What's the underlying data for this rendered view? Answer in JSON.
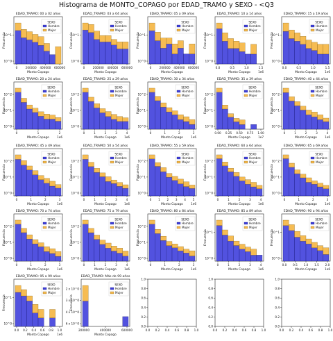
{
  "title": "Histograma de MONTO_COPAGO por EDAD_TRAMO y SEXO - <Q3",
  "colors": {
    "hombre": "#3f3fdc",
    "mujer": "#f6b84a"
  },
  "chart_data": [
    {
      "type": "bar",
      "title": "EDAD_TRAMO: 00 a 02 años",
      "legend_title": "SEXO",
      "xlabel": "Monto Copago",
      "ylabel": "Frecuencia",
      "yscale": "log",
      "yticks": [
        "10^0",
        "10^1"
      ],
      "xticks": [
        "0",
        "200000",
        "400000",
        "600000"
      ],
      "x_offset": "",
      "series": [
        {
          "name": "Hombre",
          "values": [
            6,
            3.5,
            3,
            2.5,
            2,
            1.3,
            1,
            0
          ]
        },
        {
          "name": "Mujer",
          "values": [
            4.5,
            3,
            2.5,
            2,
            1.8,
            1,
            0,
            1.8
          ]
        }
      ]
    },
    {
      "type": "bar",
      "title": "EDAD_TRAMO: 03 a 04 años",
      "legend_title": "SEXO",
      "xlabel": "Monto Copago",
      "ylabel": "Frecuencia",
      "yscale": "log",
      "yticks": [
        "10^0",
        "10^1"
      ],
      "xticks": [
        "0",
        "200000",
        "400000",
        "600000"
      ],
      "x_offset": "",
      "series": [
        {
          "name": "Hombre",
          "values": [
            6,
            5,
            3,
            2.5,
            2.5,
            2,
            1.5,
            1.5
          ]
        },
        {
          "name": "Mujer",
          "values": [
            4,
            4,
            2.5,
            1.5,
            1.5,
            1,
            1,
            1
          ]
        }
      ]
    },
    {
      "type": "bar",
      "title": "EDAD_TRAMO: 05 a 09 años",
      "legend_title": "SEXO",
      "xlabel": "Monto Copago",
      "ylabel": "Frecuencia",
      "yscale": "log",
      "yticks": [
        "10^0",
        "10^1"
      ],
      "xticks": [
        "0",
        "200000",
        "400000",
        "600000"
      ],
      "x_offset": "",
      "series": [
        {
          "name": "Hombre",
          "values": [
            5,
            2.5,
            1.5,
            2,
            1,
            1.5,
            1,
            1
          ]
        },
        {
          "name": "Mujer",
          "values": [
            3.5,
            2,
            1.5,
            1,
            1,
            1,
            0,
            1
          ]
        }
      ]
    },
    {
      "type": "bar",
      "title": "EDAD_TRAMO: 10 a 14 años",
      "legend_title": "SEXO",
      "xlabel": "Monto Copago",
      "ylabel": "Frecuencia",
      "yscale": "log",
      "yticks": [
        "10^0",
        "10^1"
      ],
      "xticks": [
        "0.0",
        "0.5",
        "1.0",
        "1.5"
      ],
      "x_offset": "1e6",
      "series": [
        {
          "name": "Hombre",
          "values": [
            6,
            2.5,
            1.5,
            1.5,
            1.2,
            1,
            1,
            0
          ]
        },
        {
          "name": "Mujer",
          "values": [
            3,
            2,
            1.5,
            1,
            1,
            0,
            1,
            0
          ]
        }
      ]
    },
    {
      "type": "bar",
      "title": "EDAD_TRAMO: 15 a 19 años",
      "legend_title": "SEXO",
      "xlabel": "Monto Copago",
      "ylabel": "Frecuencia",
      "yscale": "log",
      "yticks": [
        "10^0",
        "10^1"
      ],
      "xticks": [
        "0.0",
        "0.5",
        "1.0",
        "1.5"
      ],
      "x_offset": "1e6",
      "series": [
        {
          "name": "Hombre",
          "values": [
            5,
            3,
            2.5,
            2,
            1.5,
            1.3,
            1,
            1
          ]
        },
        {
          "name": "Mujer",
          "values": [
            4,
            2.5,
            2,
            1.5,
            1.2,
            1,
            1,
            1
          ]
        }
      ]
    },
    {
      "type": "bar",
      "title": "EDAD_TRAMO: 20 a 24 años",
      "legend_title": "SEXO",
      "xlabel": "Monto Copago",
      "ylabel": "Frecuencia",
      "yscale": "log",
      "yticks": [
        "10^0",
        "10^1",
        "10^2"
      ],
      "xticks": [
        "0",
        "1",
        "2"
      ],
      "x_offset": "1e6",
      "series": [
        {
          "name": "Hombre",
          "values": [
            80,
            20,
            8,
            5,
            3,
            2,
            2,
            1.5
          ]
        },
        {
          "name": "Mujer",
          "values": [
            60,
            15,
            6,
            4,
            2.5,
            2,
            1.5,
            1
          ]
        }
      ]
    },
    {
      "type": "bar",
      "title": "EDAD_TRAMO: 25 a 29 años",
      "legend_title": "SEXO",
      "xlabel": "Monto Copago",
      "ylabel": "Frecuencia",
      "yscale": "log",
      "yticks": [
        "10^0",
        "10^1",
        "10^2"
      ],
      "xticks": [
        "0",
        "1",
        "2",
        "3",
        "4"
      ],
      "x_offset": "1e6",
      "series": [
        {
          "name": "Hombre",
          "values": [
            90,
            25,
            10,
            5,
            3,
            2,
            1.5,
            1.5
          ]
        },
        {
          "name": "Mujer",
          "values": [
            70,
            20,
            8,
            4,
            3,
            2,
            1.5,
            1
          ]
        }
      ]
    },
    {
      "type": "bar",
      "title": "EDAD_TRAMO: 30 a 34 años",
      "legend_title": "SEXO",
      "xlabel": "Monto Copago",
      "ylabel": "Frecuencia",
      "yscale": "log",
      "yticks": [
        "10^0",
        "10^1",
        "10^2"
      ],
      "xticks": [
        "0",
        "1",
        "2",
        "3"
      ],
      "x_offset": "1e6",
      "series": [
        {
          "name": "Hombre",
          "values": [
            100,
            30,
            12,
            6,
            4,
            2,
            1.5,
            1
          ]
        },
        {
          "name": "Mujer",
          "values": [
            80,
            25,
            10,
            5,
            3,
            2,
            1.5,
            1
          ]
        }
      ]
    },
    {
      "type": "bar",
      "title": "EDAD_TRAMO: 35 a 39 años",
      "legend_title": "SEXO",
      "xlabel": "Monto Copago",
      "ylabel": "Frecuencia",
      "yscale": "log",
      "yticks": [
        "10^0",
        "10^1",
        "10^2"
      ],
      "xticks": [
        "0.00",
        "0.25",
        "0.50",
        "0.75",
        "1.00"
      ],
      "x_offset": "1e7",
      "series": [
        {
          "name": "Hombre",
          "values": [
            120,
            10,
            3,
            1.5,
            1,
            0,
            1,
            0
          ]
        },
        {
          "name": "Mujer",
          "values": [
            100,
            8,
            2,
            1,
            1,
            0,
            0,
            0
          ]
        }
      ]
    },
    {
      "type": "bar",
      "title": "EDAD_TRAMO: 40 a 44 años",
      "legend_title": "SEXO",
      "xlabel": "Monto Copago",
      "ylabel": "Frecuencia",
      "yscale": "log",
      "yticks": [
        "10^0",
        "10^1",
        "10^2"
      ],
      "xticks": [
        "0",
        "1",
        "2",
        "3",
        "4"
      ],
      "x_offset": "1e6",
      "series": [
        {
          "name": "Hombre",
          "values": [
            100,
            30,
            15,
            8,
            4,
            3,
            2,
            1.5
          ]
        },
        {
          "name": "Mujer",
          "values": [
            90,
            25,
            12,
            6,
            4,
            3,
            2,
            1
          ]
        }
      ]
    },
    {
      "type": "bar",
      "title": "EDAD_TRAMO: 45 a 49 años",
      "legend_title": "SEXO",
      "xlabel": "Monto Copago",
      "ylabel": "Frecuencia",
      "yscale": "log",
      "yticks": [
        "10^0",
        "10^1",
        "10^2"
      ],
      "xticks": [
        "0",
        "1",
        "2",
        "3"
      ],
      "x_offset": "1e6",
      "series": [
        {
          "name": "Hombre",
          "values": [
            90,
            40,
            20,
            10,
            5,
            3,
            2,
            1.5
          ]
        },
        {
          "name": "Mujer",
          "values": [
            80,
            35,
            15,
            8,
            4,
            3,
            2,
            1
          ]
        }
      ]
    },
    {
      "type": "bar",
      "title": "EDAD_TRAMO: 50 a 54 años",
      "legend_title": "SEXO",
      "xlabel": "Monto Copago",
      "ylabel": "Frecuencia",
      "yscale": "log",
      "yticks": [
        "10^0",
        "10^1",
        "10^2"
      ],
      "xticks": [
        "0",
        "1",
        "2",
        "3",
        "4"
      ],
      "x_offset": "1e6",
      "series": [
        {
          "name": "Hombre",
          "values": [
            100,
            35,
            15,
            8,
            4,
            3,
            2,
            1.5
          ]
        },
        {
          "name": "Mujer",
          "values": [
            90,
            30,
            12,
            6,
            4,
            2,
            1.5,
            1
          ]
        }
      ]
    },
    {
      "type": "bar",
      "title": "EDAD_TRAMO: 55 a 59 años",
      "legend_title": "SEXO",
      "xlabel": "Monto Copago",
      "ylabel": "Frecuencia",
      "yscale": "log",
      "yticks": [
        "10^0",
        "10^1",
        "10^2"
      ],
      "xticks": [
        "0",
        "1",
        "2",
        "3",
        "4",
        "5"
      ],
      "x_offset": "1e6",
      "series": [
        {
          "name": "Hombre",
          "values": [
            120,
            40,
            18,
            8,
            5,
            3,
            2,
            1.5
          ]
        },
        {
          "name": "Mujer",
          "values": [
            100,
            30,
            15,
            6,
            4,
            3,
            2,
            1
          ]
        }
      ]
    },
    {
      "type": "bar",
      "title": "EDAD_TRAMO: 60 a 64 años",
      "legend_title": "SEXO",
      "xlabel": "Monto Copago",
      "ylabel": "Frecuencia",
      "yscale": "log",
      "yticks": [
        "10^0",
        "10^1",
        "10^2"
      ],
      "xticks": [
        "0",
        "1",
        "2",
        "3",
        "4"
      ],
      "x_offset": "1e6",
      "series": [
        {
          "name": "Hombre",
          "values": [
            150,
            50,
            20,
            10,
            5,
            3,
            2,
            1.5
          ]
        },
        {
          "name": "Mujer",
          "values": [
            120,
            40,
            15,
            8,
            4,
            3,
            2,
            1
          ]
        }
      ]
    },
    {
      "type": "bar",
      "title": "EDAD_TRAMO: 65 a 69 años",
      "legend_title": "SEXO",
      "xlabel": "Monto Copago",
      "ylabel": "Frecuencia",
      "yscale": "log",
      "yticks": [
        "10^0",
        "10^1",
        "10^2"
      ],
      "xticks": [
        "0",
        "1",
        "2",
        "3"
      ],
      "x_offset": "1e6",
      "series": [
        {
          "name": "Hombre",
          "values": [
            150,
            40,
            15,
            8,
            4,
            3,
            2,
            1.5
          ]
        },
        {
          "name": "Mujer",
          "values": [
            120,
            35,
            12,
            6,
            4,
            2,
            1.5,
            1
          ]
        }
      ]
    },
    {
      "type": "bar",
      "title": "EDAD_TRAMO: 70 a 74 años",
      "legend_title": "SEXO",
      "xlabel": "Monto Copago",
      "ylabel": "Frecuencia",
      "yscale": "log",
      "yticks": [
        "10^0",
        "10^1",
        "10^2"
      ],
      "xticks": [
        "0",
        "1",
        "2",
        "3"
      ],
      "x_offset": "1e6",
      "series": [
        {
          "name": "Hombre",
          "values": [
            100,
            30,
            12,
            6,
            4,
            2,
            1.5,
            1
          ]
        },
        {
          "name": "Mujer",
          "values": [
            80,
            25,
            10,
            5,
            3,
            2,
            1.5,
            1
          ]
        }
      ]
    },
    {
      "type": "bar",
      "title": "EDAD_TRAMO: 75 a 79 años",
      "legend_title": "SEXO",
      "xlabel": "Monto Copago",
      "ylabel": "Frecuencia",
      "yscale": "log",
      "yticks": [
        "10^0",
        "10^1",
        "10^2"
      ],
      "xticks": [
        "0",
        "1",
        "2",
        "3",
        "4"
      ],
      "x_offset": "1e6",
      "series": [
        {
          "name": "Hombre",
          "values": [
            80,
            25,
            10,
            5,
            3,
            2,
            1.5,
            1
          ]
        },
        {
          "name": "Mujer",
          "values": [
            60,
            20,
            8,
            4,
            3,
            2,
            1.5,
            1
          ]
        }
      ]
    },
    {
      "type": "bar",
      "title": "EDAD_TRAMO: 80 a 84 años",
      "legend_title": "SEXO",
      "xlabel": "Monto Copago",
      "ylabel": "Frecuencia",
      "yscale": "log",
      "yticks": [
        "10^0",
        "10^1",
        "10^2"
      ],
      "xticks": [
        "0",
        "1",
        "2",
        "3"
      ],
      "x_offset": "1e6",
      "series": [
        {
          "name": "Hombre",
          "values": [
            70,
            20,
            8,
            4,
            3,
            2,
            1.5,
            1
          ]
        },
        {
          "name": "Mujer",
          "values": [
            50,
            15,
            6,
            3,
            2,
            1.5,
            1,
            1
          ]
        }
      ]
    },
    {
      "type": "bar",
      "title": "EDAD_TRAMO: 85 a 89 años",
      "legend_title": "SEXO",
      "xlabel": "Monto Copago",
      "ylabel": "Frecuencia",
      "yscale": "log",
      "yticks": [
        "10^0",
        "10^1"
      ],
      "xticks": [
        "0",
        "1",
        "2",
        "3",
        "4"
      ],
      "x_offset": "1e6",
      "series": [
        {
          "name": "Hombre",
          "values": [
            30,
            10,
            5,
            3,
            2,
            1.5,
            1,
            1
          ]
        },
        {
          "name": "Mujer",
          "values": [
            25,
            8,
            4,
            2,
            1.5,
            1,
            1,
            0
          ]
        }
      ]
    },
    {
      "type": "bar",
      "title": "EDAD_TRAMO: 90 a 94 años",
      "legend_title": "SEXO",
      "xlabel": "Monto Copago",
      "ylabel": "Frecuencia",
      "yscale": "log",
      "yticks": [
        "10^0",
        "10^1"
      ],
      "xticks": [
        "0.0",
        "0.5",
        "1.0",
        "1.5",
        "2.0"
      ],
      "x_offset": "1e6",
      "series": [
        {
          "name": "Hombre",
          "values": [
            20,
            12,
            6,
            4,
            3,
            2,
            1.5,
            1
          ]
        },
        {
          "name": "Mujer",
          "values": [
            15,
            10,
            5,
            3,
            2,
            1.5,
            1,
            1
          ]
        }
      ]
    },
    {
      "type": "bar",
      "title": "EDAD_TRAMO: 95 a 99 años",
      "legend_title": "SEXO",
      "xlabel": "Monto Copago",
      "ylabel": "Frecuencia",
      "yscale": "log",
      "yticks": [
        "10^0",
        "10^1"
      ],
      "xticks": [
        "0.0",
        "0.2",
        "0.4",
        "0.6",
        "0.8",
        "1.0"
      ],
      "x_offset": "1e6",
      "series": [
        {
          "name": "Hombre",
          "values": [
            8,
            6,
            4,
            1.5,
            1,
            0,
            1,
            0
          ]
        },
        {
          "name": "Mujer",
          "values": [
            6,
            4,
            2,
            1.5,
            1,
            0,
            1,
            0
          ]
        }
      ]
    },
    {
      "type": "bar",
      "title": "EDAD_TRAMO: Más de 99 años",
      "legend_title": "SEXO",
      "xlabel": "Monto Copago",
      "ylabel": "Frecuencia",
      "yscale": "log",
      "yticks": [
        "6 x 10^0",
        "4 x 10^0",
        "3 x 10^0",
        "2 x 10^0"
      ],
      "xticks": [
        "200000",
        "400000",
        "600000"
      ],
      "x_offset": "",
      "series": [
        {
          "name": "Hombre",
          "values": [
            3,
            0,
            0,
            0,
            0,
            0,
            0,
            1
          ]
        },
        {
          "name": "Mujer",
          "values": [
            6,
            0,
            0,
            0,
            0,
            0,
            0,
            0
          ]
        }
      ]
    },
    {
      "type": "empty",
      "yticks": [
        "0.0",
        "0.2",
        "0.4",
        "0.6",
        "0.8",
        "1.0"
      ],
      "xticks": [
        "0.0",
        "0.2",
        "0.4",
        "0.6",
        "0.8",
        "1.0"
      ]
    },
    {
      "type": "empty",
      "yticks": [
        "0.0",
        "0.2",
        "0.4",
        "0.6",
        "0.8",
        "1.0"
      ],
      "xticks": [
        "0.0",
        "0.2",
        "0.4",
        "0.6",
        "0.8",
        "1.0"
      ]
    },
    {
      "type": "empty",
      "yticks": [
        "0.0",
        "0.2",
        "0.4",
        "0.6",
        "0.8",
        "1.0"
      ],
      "xticks": [
        "0.0",
        "0.2",
        "0.4",
        "0.6",
        "0.8",
        "1.0"
      ]
    }
  ]
}
